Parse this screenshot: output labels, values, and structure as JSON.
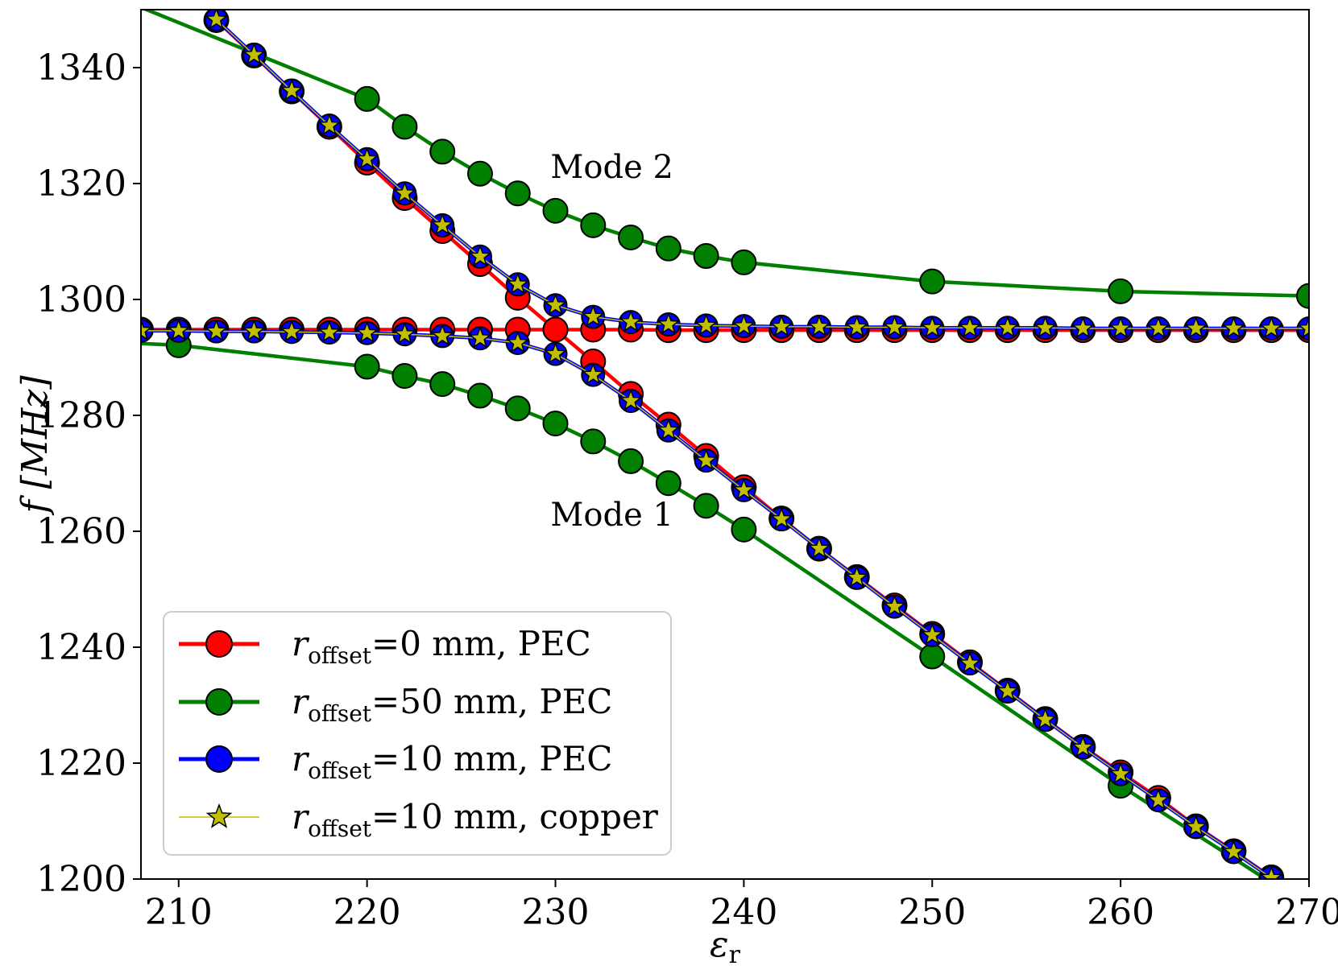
{
  "chart_data": {
    "type": "line",
    "xlabel": "ε",
    "xlabel_sub": "r",
    "ylabel": "f [MHz]",
    "xlim": [
      208,
      270
    ],
    "ylim": [
      1200,
      1350
    ],
    "xticks": [
      210,
      220,
      230,
      240,
      250,
      260,
      270
    ],
    "yticks": [
      1200,
      1220,
      1240,
      1260,
      1280,
      1300,
      1320,
      1340
    ],
    "grid": false,
    "legend_position": "bottom-left",
    "annotations": [
      {
        "text": "Mode 2",
        "x": 233,
        "y": 1321
      },
      {
        "text": "Mode 1",
        "x": 233,
        "y": 1261
      }
    ],
    "colors": {
      "red": "#ff0000",
      "green": "#007f00",
      "blue": "#0000ff",
      "copper": "#bfbf00",
      "edge": "#000000"
    },
    "series": [
      {
        "name": "r_offset=0 mm, PEC",
        "legend_var": "r",
        "legend_sub": "offset",
        "legend_rest": "=0 mm, PEC",
        "color": "#ff0000",
        "marker": "circle",
        "branches": [
          {
            "x": [
              208,
              210,
              212,
              214,
              216,
              218,
              220,
              222,
              224,
              226,
              228,
              230,
              232,
              234,
              236,
              238,
              240,
              242,
              244,
              246,
              248,
              250,
              252,
              254,
              256,
              258,
              260,
              262,
              264,
              266,
              268,
              270
            ],
            "y": [
              1294.8,
              1294.8,
              1294.8,
              1294.8,
              1294.8,
              1294.8,
              1294.8,
              1294.8,
              1294.8,
              1294.8,
              1294.8,
              1294.8,
              1294.8,
              1294.8,
              1294.7,
              1294.7,
              1294.7,
              1294.7,
              1294.7,
              1294.7,
              1294.7,
              1294.7,
              1294.7,
              1294.7,
              1294.7,
              1294.7,
              1294.7,
              1294.7,
              1294.7,
              1294.7,
              1294.7,
              1294.7
            ]
          },
          {
            "x": [
              212,
              214,
              216,
              218,
              220,
              222,
              224,
              226,
              228,
              230,
              232,
              234,
              236,
              238,
              240,
              242,
              244,
              246,
              248,
              250,
              252,
              254,
              256,
              258,
              260,
              262,
              264,
              266,
              268
            ],
            "y": [
              1348.2,
              1342.1,
              1335.9,
              1329.8,
              1323.6,
              1317.5,
              1311.8,
              1306.1,
              1300.3,
              1294.8,
              1289.3,
              1283.7,
              1278.4,
              1273.0,
              1267.6,
              1262.2,
              1257.0,
              1252.1,
              1247.2,
              1242.3,
              1237.4,
              1232.5,
              1227.6,
              1222.8,
              1218.4,
              1214.0,
              1209.1,
              1204.8,
              1200.3
            ]
          }
        ]
      },
      {
        "name": "r_offset=50 mm, PEC",
        "legend_var": "r",
        "legend_sub": "offset",
        "legend_rest": "=50 mm, PEC",
        "color": "#007f00",
        "marker": "circle",
        "branches": [
          {
            "x": [
              208,
              220,
              222,
              224,
              226,
              228,
              230,
              232,
              234,
              236,
              238,
              240,
              250,
              260,
              270
            ],
            "y": [
              1350.4,
              1334.6,
              1329.8,
              1325.5,
              1321.7,
              1318.3,
              1315.3,
              1312.8,
              1310.7,
              1308.8,
              1307.5,
              1306.4,
              1303.1,
              1301.4,
              1300.6
            ],
            "marker_mask": [
              false,
              true,
              true,
              true,
              true,
              true,
              true,
              true,
              true,
              true,
              true,
              true,
              true,
              true,
              true
            ]
          },
          {
            "x": [
              208,
              210,
              220,
              222,
              224,
              226,
              228,
              230,
              232,
              234,
              236,
              238,
              240,
              250,
              260,
              270
            ],
            "y": [
              1292.4,
              1292.1,
              1288.4,
              1286.8,
              1285.4,
              1283.4,
              1281.2,
              1278.6,
              1275.5,
              1272.1,
              1268.3,
              1264.4,
              1260.3,
              1238.4,
              1216.1,
              1195.2
            ],
            "marker_mask": [
              false,
              true,
              true,
              true,
              true,
              true,
              true,
              true,
              true,
              true,
              true,
              true,
              true,
              true,
              true,
              false
            ]
          }
        ]
      },
      {
        "name": "r_offset=10 mm, PEC",
        "legend_var": "r",
        "legend_sub": "offset",
        "legend_rest": "=10 mm, PEC",
        "color": "#0000ff",
        "marker": "circle",
        "branches": [
          {
            "x": [
              208,
              210,
              212,
              214,
              216,
              218,
              220,
              222,
              224,
              226,
              228,
              230,
              232,
              234,
              236,
              238,
              240,
              242,
              244,
              246,
              248,
              250,
              252,
              254,
              256,
              258,
              260,
              262,
              264,
              266,
              268,
              270
            ],
            "y": [
              1294.6,
              1294.6,
              1294.5,
              1294.5,
              1294.4,
              1294.3,
              1294.2,
              1294.0,
              1293.7,
              1293.3,
              1292.5,
              1290.6,
              1287.0,
              1282.5,
              1277.4,
              1272.2,
              1267.1,
              1262.1,
              1257.0,
              1252.0,
              1247.0,
              1242.1,
              1237.2,
              1232.4,
              1227.5,
              1222.7,
              1218.1,
              1213.6,
              1209.0,
              1204.7,
              1200.2,
              1197.0
            ]
          },
          {
            "x": [
              212,
              214,
              216,
              218,
              220,
              222,
              224,
              226,
              228,
              230,
              232,
              234,
              236,
              238,
              240,
              242,
              244,
              246,
              248,
              250,
              252,
              254,
              256,
              258,
              260,
              262,
              264,
              266,
              268,
              270
            ],
            "y": [
              1348.3,
              1342.2,
              1336.0,
              1330.0,
              1324.2,
              1318.3,
              1312.8,
              1307.4,
              1302.6,
              1299.0,
              1297.0,
              1296.1,
              1295.7,
              1295.5,
              1295.4,
              1295.3,
              1295.3,
              1295.2,
              1295.2,
              1295.1,
              1295.1,
              1295.1,
              1295.1,
              1295.0,
              1295.0,
              1295.0,
              1295.0,
              1295.0,
              1295.0,
              1295.0
            ]
          }
        ]
      },
      {
        "name": "r_offset=10 mm, copper",
        "legend_var": "r",
        "legend_sub": "offset",
        "legend_rest": "=10 mm, copper",
        "color": "#bfbf00",
        "marker": "star",
        "branches": [
          {
            "x": [
              208,
              210,
              212,
              214,
              216,
              218,
              220,
              222,
              224,
              226,
              228,
              230,
              232,
              234,
              236,
              238,
              240,
              242,
              244,
              246,
              248,
              250,
              252,
              254,
              256,
              258,
              260,
              262,
              264,
              266,
              268,
              270
            ],
            "y": [
              1294.6,
              1294.6,
              1294.5,
              1294.5,
              1294.4,
              1294.3,
              1294.2,
              1294.0,
              1293.7,
              1293.3,
              1292.5,
              1290.6,
              1287.0,
              1282.5,
              1277.4,
              1272.2,
              1267.1,
              1262.1,
              1257.0,
              1252.0,
              1247.0,
              1242.1,
              1237.2,
              1232.4,
              1227.5,
              1222.7,
              1218.1,
              1213.6,
              1209.0,
              1204.7,
              1200.2,
              1197.0
            ]
          },
          {
            "x": [
              212,
              214,
              216,
              218,
              220,
              222,
              224,
              226,
              228,
              230,
              232,
              234,
              236,
              238,
              240,
              242,
              244,
              246,
              248,
              250,
              252,
              254,
              256,
              258,
              260,
              262,
              264,
              266,
              268,
              270
            ],
            "y": [
              1348.3,
              1342.2,
              1336.0,
              1330.0,
              1324.2,
              1318.3,
              1312.8,
              1307.4,
              1302.6,
              1299.0,
              1297.0,
              1296.1,
              1295.7,
              1295.5,
              1295.4,
              1295.3,
              1295.3,
              1295.2,
              1295.2,
              1295.1,
              1295.1,
              1295.1,
              1295.1,
              1295.0,
              1295.0,
              1295.0,
              1295.0,
              1295.0,
              1295.0,
              1295.0
            ]
          }
        ]
      }
    ]
  }
}
